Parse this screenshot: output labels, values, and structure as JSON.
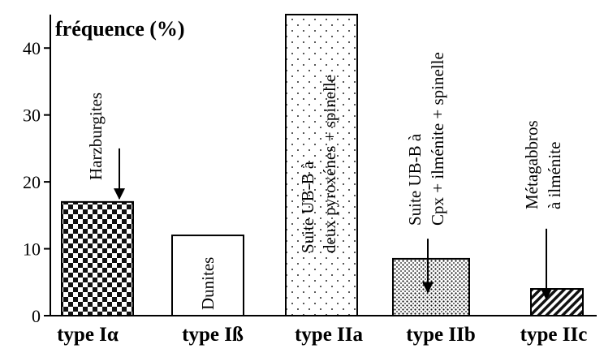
{
  "chart_data": {
    "type": "bar",
    "ylabel": "fréquence (%)",
    "ylim": [
      0,
      45
    ],
    "yticks": [
      0,
      10,
      20,
      30,
      40
    ],
    "categories": [
      "type Iα",
      "type Iß",
      "type IIa",
      "type IIb",
      "type IIc"
    ],
    "values": [
      17,
      12,
      45,
      8.5,
      4
    ],
    "bar_patterns": [
      "checker",
      "plain",
      "sparse-dots",
      "dense-dots",
      "hatch"
    ],
    "annotations": [
      {
        "category": "type Iα",
        "lines": [
          "Harzburgites"
        ],
        "arrow": true,
        "arrow_from": 25,
        "arrow_to": 17.5
      },
      {
        "category": "type Iß",
        "lines": [
          "Dunites"
        ],
        "arrow": false
      },
      {
        "category": "type IIa",
        "lines": [
          "Suite UB-B à",
          "deux pyroxénes + spinelle"
        ],
        "arrow": false
      },
      {
        "category": "type IIb",
        "lines": [
          "Suite UB-B à",
          "Cpx + ilménite + spinelle"
        ],
        "arrow": true,
        "arrow_from": 11.5,
        "arrow_to": 3.5
      },
      {
        "category": "type IIc",
        "lines": [
          "Métagabbros",
          "à ilménite"
        ],
        "arrow": true,
        "arrow_from": 13,
        "arrow_to": 2.5
      }
    ]
  }
}
